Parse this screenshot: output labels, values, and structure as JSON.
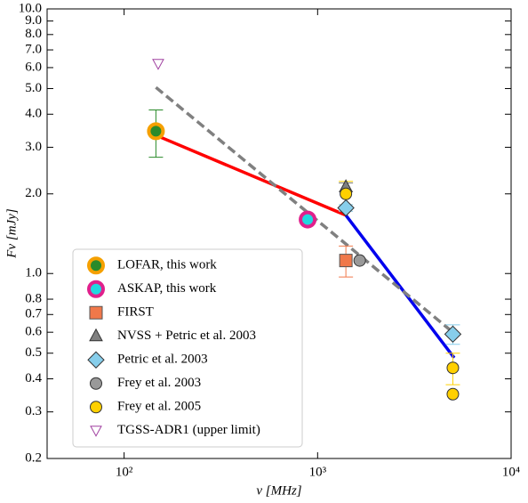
{
  "chart_data": {
    "type": "scatter",
    "log_x": true,
    "log_y": true,
    "x_label": "ν [MHz]",
    "y_label": "Fν [mJy]",
    "xlim": [
      40,
      10000
    ],
    "ylim": [
      0.2,
      10
    ],
    "xticks": [
      {
        "value": 100,
        "label": "10²"
      },
      {
        "value": 1000,
        "label": "10³"
      },
      {
        "value": 10000,
        "label": "10⁴"
      }
    ],
    "yticks": [
      0.2,
      0.3,
      0.4,
      0.5,
      0.6,
      0.7,
      0.8,
      {
        "value": 1,
        "label": "1.0"
      },
      {
        "value": 2,
        "label": "2.0"
      },
      {
        "value": 3,
        "label": "3.0"
      },
      {
        "value": 4,
        "label": "4.0"
      },
      {
        "value": 5,
        "label": "5.0"
      },
      {
        "value": 6,
        "label": "6.0"
      },
      {
        "value": 7,
        "label": "7.0"
      },
      {
        "value": 8,
        "label": "8.0"
      },
      {
        "value": 9,
        "label": "9.0"
      },
      {
        "value": 10,
        "label": "10.0"
      }
    ],
    "legend": "lower left",
    "series": [
      {
        "name": "LOFAR, this work",
        "marker": "circle-ring",
        "color": "#2a8a2a",
        "edgecolor": "#f5a000",
        "x": [
          146
        ],
        "values": [
          3.45
        ],
        "errors": [
          0.7
        ]
      },
      {
        "name": "ASKAP, this work",
        "marker": "circle-ring",
        "color": "#20d8e0",
        "edgecolor": "#e0208c",
        "x": [
          888
        ],
        "values": [
          1.6
        ],
        "errors": [
          null
        ]
      },
      {
        "name": "FIRST",
        "marker": "square",
        "color": "#f0784a",
        "edgecolor": "#555555",
        "x": [
          1400
        ],
        "values": [
          1.12
        ],
        "errors": [
          0.15
        ]
      },
      {
        "name": "NVSS + Petric et al. 2003",
        "marker": "triangle",
        "color": "#808080",
        "edgecolor": "#333333",
        "x": [
          1400
        ],
        "values": [
          2.12
        ],
        "errors": [
          0.08
        ]
      },
      {
        "name": "Petric et al. 2003",
        "marker": "diamond",
        "color": "#87ceeb",
        "edgecolor": "#333333",
        "x": [
          1400,
          5000
        ],
        "values": [
          1.77,
          0.59
        ],
        "errors": [
          0.05,
          0.05
        ]
      },
      {
        "name": "Frey et al. 2003",
        "marker": "circle",
        "color": "#999999",
        "edgecolor": "#333333",
        "x": [
          1650
        ],
        "values": [
          1.12
        ],
        "errors": [
          null
        ]
      },
      {
        "name": "Frey et al. 2005",
        "marker": "circle",
        "color": "#ffd000",
        "edgecolor": "#333333",
        "x": [
          1400,
          5000,
          5000
        ],
        "values": [
          2.0,
          0.44,
          0.35
        ],
        "errors": [
          0.23,
          0.06,
          null
        ]
      },
      {
        "name": "TGSS-ADR1 (upper limit)",
        "marker": "triangle-down-open",
        "color": "#a040a0",
        "edgecolor": "#a040a0",
        "x": [
          150
        ],
        "values": [
          6.2
        ],
        "errors": [
          null
        ]
      }
    ],
    "lines": [
      {
        "color": "#ff0000",
        "style": "solid",
        "x": [
          146,
          1400
        ],
        "values": [
          3.33,
          1.66
        ]
      },
      {
        "color": "#0000ee",
        "style": "solid",
        "x": [
          1400,
          5080
        ],
        "values": [
          1.66,
          0.48
        ]
      },
      {
        "color": "#808080",
        "style": "dashed",
        "x": [
          146,
          5000
        ],
        "values": [
          5.05,
          0.6
        ]
      }
    ]
  }
}
